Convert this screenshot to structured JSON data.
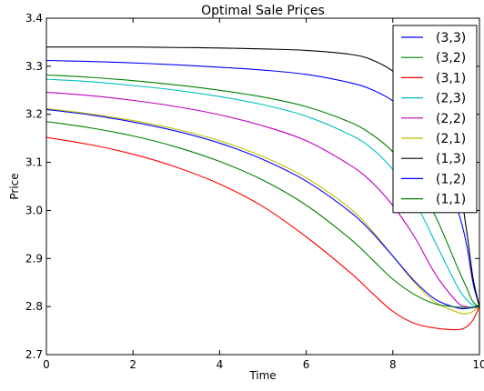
{
  "chart_data": {
    "type": "line",
    "title": "Optimal Sale Prices",
    "xlabel": "Time",
    "ylabel": "Price",
    "xlim": [
      0,
      10
    ],
    "ylim": [
      2.7,
      3.4
    ],
    "xticks": [
      0,
      2,
      4,
      6,
      8,
      10
    ],
    "xtick_labels": [
      "0",
      "2",
      "4",
      "6",
      "8",
      "10"
    ],
    "yticks": [
      2.7,
      2.8,
      2.9,
      3.0,
      3.1,
      3.2,
      3.3,
      3.4
    ],
    "ytick_labels": [
      "2.7",
      "2.8",
      "2.9",
      "3.0",
      "3.1",
      "3.2",
      "3.3",
      "3.4"
    ],
    "grid": false,
    "legend_position": "top-right",
    "x": [
      0,
      1,
      2,
      3,
      4,
      5,
      6,
      7,
      7.5,
      8,
      8.5,
      9,
      9.5,
      9.7,
      9.85,
      10
    ],
    "series": [
      {
        "name": "(3,3)",
        "color": "#0000ff",
        "values": [
          3.312,
          3.31,
          3.307,
          3.303,
          3.298,
          3.292,
          3.283,
          3.266,
          3.252,
          3.228,
          3.19,
          3.12,
          3.0,
          2.93,
          2.85,
          2.8
        ]
      },
      {
        "name": "(3,2)",
        "color": "#008000",
        "values": [
          3.282,
          3.277,
          3.27,
          3.261,
          3.25,
          3.236,
          3.216,
          3.184,
          3.159,
          3.122,
          3.065,
          2.985,
          2.88,
          2.84,
          2.81,
          2.8
        ]
      },
      {
        "name": "(3,1)",
        "color": "#ff0000",
        "values": [
          3.152,
          3.137,
          3.117,
          3.09,
          3.055,
          3.008,
          2.945,
          2.872,
          2.83,
          2.79,
          2.765,
          2.755,
          2.752,
          2.758,
          2.772,
          2.8
        ]
      },
      {
        "name": "(2,3)",
        "color": "#00bfbf",
        "values": [
          3.273,
          3.268,
          3.26,
          3.25,
          3.237,
          3.22,
          3.196,
          3.158,
          3.13,
          3.085,
          3.02,
          2.93,
          2.84,
          2.815,
          2.803,
          2.8
        ]
      },
      {
        "name": "(2,2)",
        "color": "#bf00bf",
        "values": [
          3.246,
          3.239,
          3.229,
          3.216,
          3.199,
          3.176,
          3.145,
          3.095,
          3.06,
          3.01,
          2.945,
          2.865,
          2.808,
          2.8,
          2.798,
          2.8
        ]
      },
      {
        "name": "(2,1)",
        "color": "#bfbf00",
        "values": [
          3.212,
          3.201,
          3.187,
          3.169,
          3.145,
          3.112,
          3.068,
          3.005,
          2.96,
          2.905,
          2.85,
          2.808,
          2.788,
          2.785,
          2.79,
          2.8
        ]
      },
      {
        "name": "(1,3)",
        "color": "#000000",
        "values": [
          3.34,
          3.34,
          3.34,
          3.339,
          3.338,
          3.336,
          3.333,
          3.325,
          3.314,
          3.29,
          3.25,
          3.18,
          3.06,
          2.96,
          2.86,
          2.8
        ]
      },
      {
        "name": "(1,2)",
        "color": "#0000ff",
        "values": [
          3.21,
          3.199,
          3.184,
          3.165,
          3.14,
          3.106,
          3.061,
          2.998,
          2.956,
          2.905,
          2.853,
          2.814,
          2.797,
          2.796,
          2.798,
          2.8
        ]
      },
      {
        "name": "(1,1)",
        "color": "#008000",
        "values": [
          3.185,
          3.172,
          3.155,
          3.132,
          3.102,
          3.063,
          3.011,
          2.942,
          2.9,
          2.857,
          2.825,
          2.805,
          2.799,
          2.798,
          2.799,
          2.8
        ]
      }
    ]
  }
}
